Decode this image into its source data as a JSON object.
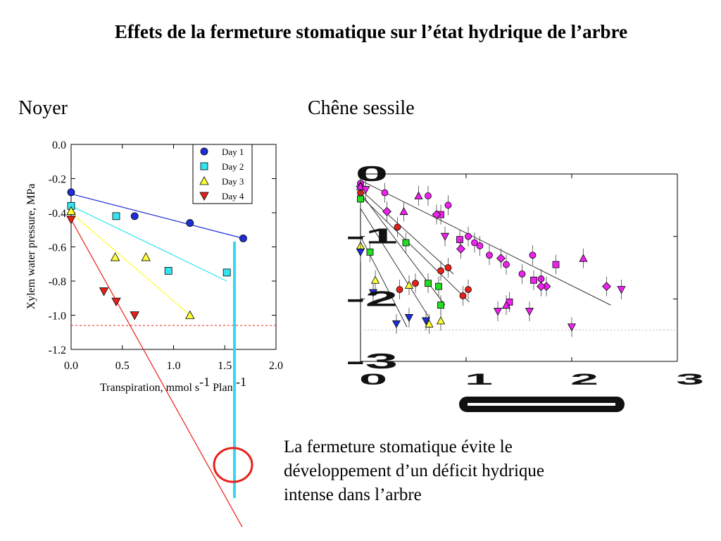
{
  "slide": {
    "title": "Effets de la fermeture stomatique sur l’état hydrique  de l’arbre",
    "label_left": "Noyer",
    "label_right": "Chêne sessile",
    "conclusion_lines": [
      "La fermeture stomatique évite le",
      "développement d’un déficit hydrique",
      "intense dans l’arbre"
    ]
  },
  "chart_data": [
    {
      "type": "scatter",
      "ylabel": "Xylem water pressure, MPa",
      "xlabel": {
        "text": "Transpiration, mmol s",
        "sup1": "-1",
        "mid": " Plant",
        "sup2": "-1"
      },
      "xlim": [
        0,
        2.0
      ],
      "ylim": [
        -1.2,
        0.0
      ],
      "xticks": [
        "0.0",
        "0.5",
        "1.0",
        "1.5",
        "2.0"
      ],
      "yticks": [
        "0.0",
        "-0.2",
        "-0.4",
        "-0.6",
        "-0.8",
        "-1.0",
        "-1.2"
      ],
      "threshold_y": -1.06,
      "legend_position": "top-right",
      "series": [
        {
          "name": "Day 1",
          "marker": "circle",
          "color": "#1f2fd6",
          "line_color": "#1f2fd6",
          "points": [
            [
              0.0,
              -0.28
            ],
            [
              0.62,
              -0.42
            ],
            [
              1.16,
              -0.46
            ],
            [
              1.68,
              -0.55
            ]
          ],
          "fit": [
            [
              0.0,
              -0.29
            ],
            [
              1.68,
              -0.55
            ]
          ]
        },
        {
          "name": "Day 2",
          "marker": "square",
          "color": "#33e5f0",
          "line_color": "#33e5f0",
          "points": [
            [
              0.0,
              -0.36
            ],
            [
              0.44,
              -0.42
            ],
            [
              0.95,
              -0.74
            ],
            [
              1.52,
              -0.75
            ]
          ],
          "fit": [
            [
              0.0,
              -0.36
            ],
            [
              1.52,
              -0.8
            ]
          ]
        },
        {
          "name": "Day 3",
          "marker": "triangle-up",
          "color": "#ffff33",
          "line_color": "#ffff33",
          "points": [
            [
              0.0,
              -0.39
            ],
            [
              0.43,
              -0.66
            ],
            [
              0.73,
              -0.66
            ],
            [
              1.16,
              -1.0
            ]
          ],
          "fit": [
            [
              0.0,
              -0.4
            ],
            [
              1.16,
              -1.0
            ]
          ]
        },
        {
          "name": "Day 4",
          "marker": "triangle-down",
          "color": "#e8201a",
          "line_color": "#e8201a",
          "points": [
            [
              0.0,
              -0.44
            ],
            [
              0.32,
              -0.86
            ],
            [
              0.44,
              -0.92
            ],
            [
              0.62,
              -1.0
            ]
          ],
          "fit": [
            [
              0.0,
              -0.44
            ],
            [
              1.67,
              -2.24
            ]
          ]
        }
      ]
    },
    {
      "type": "scatter",
      "xticks": [
        "0",
        "1",
        "2",
        "3"
      ],
      "yticks": [
        "0",
        "-1",
        "-2",
        "-3"
      ],
      "xlim": [
        0,
        3
      ],
      "ylim": [
        -3,
        0
      ],
      "threshold_y": -2.5,
      "series": [
        {
          "name": "",
          "marker": "circle",
          "color": "#e8201a",
          "points": [
            [
              0.0,
              -0.3
            ],
            [
              0.35,
              -0.85
            ],
            [
              0.37,
              -1.85
            ],
            [
              0.52,
              -1.75
            ],
            [
              0.76,
              -1.55
            ],
            [
              0.83,
              -1.5
            ],
            [
              0.97,
              -1.95
            ],
            [
              1.02,
              -1.85
            ]
          ],
          "fit": [
            [
              0.0,
              -0.25
            ],
            [
              0.88,
              -1.6
            ]
          ]
        },
        {
          "name": "",
          "marker": "circle",
          "color": "#ee22ee",
          "points": [
            [
              0.0,
              -0.15
            ],
            [
              0.23,
              -0.3
            ],
            [
              0.64,
              -0.35
            ],
            [
              0.83,
              -0.5
            ],
            [
              1.02,
              -1.0
            ],
            [
              1.08,
              -1.1
            ],
            [
              1.13,
              -1.15
            ],
            [
              1.22,
              -1.3
            ],
            [
              1.38,
              -1.45
            ],
            [
              1.53,
              -1.6
            ],
            [
              1.63,
              -1.3
            ],
            [
              1.71,
              -1.68
            ]
          ],
          "fit": [
            [
              0.0,
              -0.1
            ],
            [
              2.37,
              -2.1
            ]
          ]
        },
        {
          "name": "",
          "marker": "square",
          "color": "#22dd22",
          "points": [
            [
              0.0,
              -0.4
            ],
            [
              0.09,
              -1.25
            ],
            [
              0.43,
              -1.1
            ],
            [
              0.64,
              -1.75
            ],
            [
              0.74,
              -1.8
            ],
            [
              0.76,
              -2.1
            ]
          ],
          "fit": [
            [
              0.0,
              -0.3
            ],
            [
              0.8,
              -2.1
            ]
          ]
        },
        {
          "name": "",
          "marker": "square",
          "color": "#ee22ee",
          "points": [
            [
              0.76,
              -0.65
            ],
            [
              0.94,
              -1.05
            ],
            [
              1.41,
              -2.05
            ],
            [
              1.64,
              -1.7
            ],
            [
              1.85,
              -1.45
            ]
          ]
        },
        {
          "name": "",
          "marker": "diamond",
          "color": "#ee22ee",
          "points": [
            [
              0.0,
              -0.2
            ],
            [
              0.25,
              -0.6
            ],
            [
              0.72,
              -0.65
            ],
            [
              0.95,
              -1.2
            ],
            [
              1.33,
              -1.35
            ],
            [
              1.76,
              -1.8
            ],
            [
              1.71,
              -1.8
            ],
            [
              2.33,
              -1.8
            ]
          ]
        },
        {
          "name": "",
          "marker": "triangle-up",
          "color": "#ee22ee",
          "points": [
            [
              0.0,
              -0.2
            ],
            [
              0.41,
              -0.6
            ],
            [
              0.55,
              -0.35
            ],
            [
              1.38,
              -2.1
            ],
            [
              2.11,
              -1.35
            ]
          ]
        },
        {
          "name": "",
          "marker": "triangle-down",
          "color": "#ee22ee",
          "points": [
            [
              0.05,
              -0.25
            ],
            [
              0.8,
              -1.0
            ],
            [
              1.3,
              -2.2
            ],
            [
              1.6,
              -2.2
            ],
            [
              2.0,
              -2.45
            ],
            [
              2.47,
              -1.85
            ]
          ]
        },
        {
          "name": "",
          "marker": "triangle-up",
          "color": "#ffff33",
          "points": [
            [
              0.0,
              -1.15
            ],
            [
              0.14,
              -1.7
            ],
            [
              0.46,
              -1.78
            ],
            [
              0.65,
              -2.4
            ],
            [
              0.76,
              -2.35
            ]
          ]
        },
        {
          "name": "",
          "marker": "triangle-down",
          "color": "#1f2fd6",
          "points": [
            [
              0.0,
              -1.25
            ],
            [
              0.12,
              -1.9
            ],
            [
              0.34,
              -2.4
            ],
            [
              0.46,
              -2.3
            ],
            [
              0.62,
              -2.35
            ]
          ]
        }
      ],
      "fit_lines": [
        [
          [
            0.0,
            -0.35
          ],
          [
            1.03,
            -2.05
          ]
        ],
        [
          [
            0.0,
            -0.55
          ],
          [
            0.65,
            -2.3
          ]
        ],
        [
          [
            0.0,
            -1.0
          ],
          [
            0.44,
            -2.45
          ]
        ]
      ]
    }
  ]
}
